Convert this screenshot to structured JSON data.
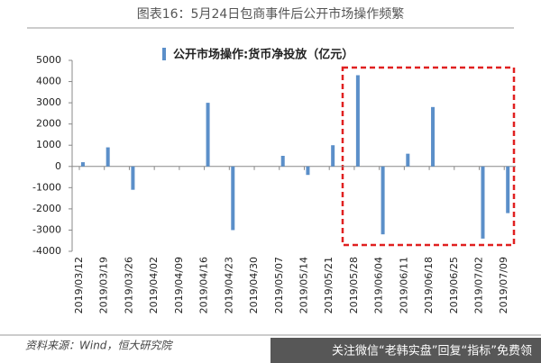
{
  "chart_data": {
    "type": "bar",
    "title": "图表16：5月24日包商事件后公开市场操作频繁",
    "legend": "公开市场操作:货币净投放（亿元）",
    "source": "资料来源：Wind，恒大研究院",
    "watermark": "关注微信“老韩实盘”回复“指标”免费领",
    "x": [
      "2019/03/13",
      "2019/03/20",
      "2019/03/27",
      "2019/04/17",
      "2019/04/24",
      "2019/05/08",
      "2019/05/15",
      "2019/05/22",
      "2019/05/29",
      "2019/06/05",
      "2019/06/12",
      "2019/06/19",
      "2019/07/03",
      "2019/07/10"
    ],
    "values": [
      200,
      900,
      -1100,
      3000,
      -3000,
      500,
      -400,
      1000,
      4300,
      -3200,
      600,
      2800,
      -3400,
      -2200
    ],
    "color": "#5b8fc9",
    "ylim": [
      -4000,
      5000
    ],
    "yticks": [
      -4000,
      -3000,
      -2000,
      -1000,
      0,
      1000,
      2000,
      3000,
      4000,
      5000
    ],
    "xticks": [
      "2019/03/12",
      "2019/03/19",
      "2019/03/26",
      "2019/04/02",
      "2019/04/09",
      "2019/04/16",
      "2019/04/23",
      "2019/04/30",
      "2019/05/07",
      "2019/05/14",
      "2019/05/21",
      "2019/05/28",
      "2019/06/04",
      "2019/06/11",
      "2019/06/18",
      "2019/06/25",
      "2019/07/02",
      "2019/07/09"
    ],
    "grid": false
  }
}
